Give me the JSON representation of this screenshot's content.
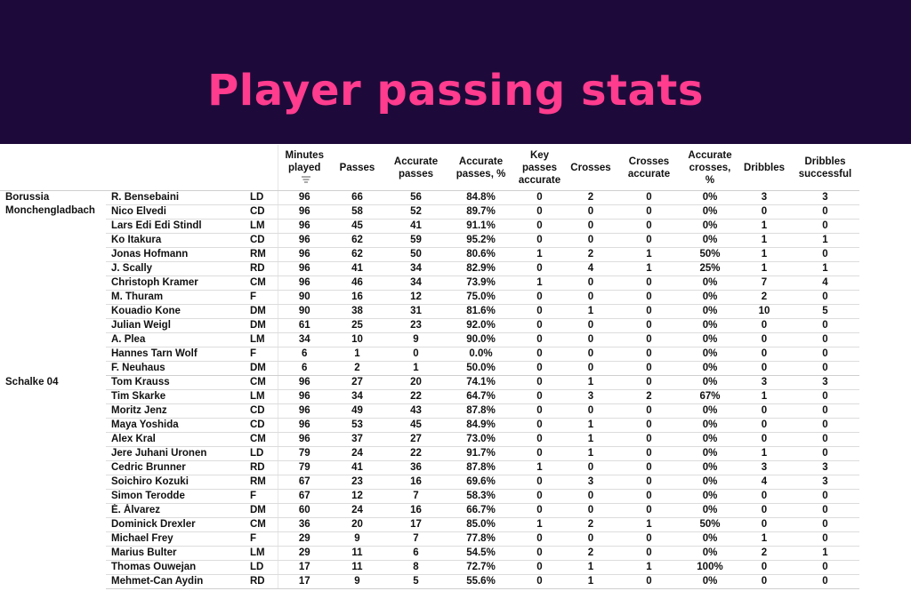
{
  "title": "Player passing stats",
  "colors": {
    "banner": "#1d0a3a",
    "title": "#ff3c8e"
  },
  "chart_data": {
    "type": "table",
    "columns": [
      "Minutes played",
      "Passes",
      "Accurate passes",
      "Accurate passes, %",
      "Key passes accurate",
      "Crosses",
      "Crosses accurate",
      "Accurate crosses, %",
      "Dribbles",
      "Dribbles successful"
    ],
    "column_lines": [
      [
        "Minutes",
        "played"
      ],
      [
        "Passes"
      ],
      [
        "Accurate",
        "passes"
      ],
      [
        "Accurate",
        "passes, %"
      ],
      [
        "Key",
        "passes",
        "accurate"
      ],
      [
        "Crosses"
      ],
      [
        "Crosses",
        "accurate"
      ],
      [
        "Accurate",
        "crosses, %"
      ],
      [
        "Dribbles"
      ],
      [
        "Dribbles",
        "successful"
      ]
    ],
    "sorted_column_icon": "sort-descending-icon",
    "teams": [
      {
        "name": "Borussia Monchengladbach",
        "players": [
          {
            "name": "R. Bensebaini",
            "pos": "LD",
            "stats": [
              "96",
              "66",
              "56",
              "84.8%",
              "0",
              "2",
              "0",
              "0%",
              "3",
              "3"
            ]
          },
          {
            "name": "Nico Elvedi",
            "pos": "CD",
            "stats": [
              "96",
              "58",
              "52",
              "89.7%",
              "0",
              "0",
              "0",
              "0%",
              "0",
              "0"
            ]
          },
          {
            "name": "Lars Edi Edi Stindl",
            "pos": "LM",
            "stats": [
              "96",
              "45",
              "41",
              "91.1%",
              "0",
              "0",
              "0",
              "0%",
              "1",
              "0"
            ]
          },
          {
            "name": "Ko Itakura",
            "pos": "CD",
            "stats": [
              "96",
              "62",
              "59",
              "95.2%",
              "0",
              "0",
              "0",
              "0%",
              "1",
              "1"
            ]
          },
          {
            "name": "Jonas Hofmann",
            "pos": "RM",
            "stats": [
              "96",
              "62",
              "50",
              "80.6%",
              "1",
              "2",
              "1",
              "50%",
              "1",
              "0"
            ]
          },
          {
            "name": "J. Scally",
            "pos": "RD",
            "stats": [
              "96",
              "41",
              "34",
              "82.9%",
              "0",
              "4",
              "1",
              "25%",
              "1",
              "1"
            ]
          },
          {
            "name": "Christoph Kramer",
            "pos": "CM",
            "stats": [
              "96",
              "46",
              "34",
              "73.9%",
              "1",
              "0",
              "0",
              "0%",
              "7",
              "4"
            ]
          },
          {
            "name": "M. Thuram",
            "pos": "F",
            "stats": [
              "90",
              "16",
              "12",
              "75.0%",
              "0",
              "0",
              "0",
              "0%",
              "2",
              "0"
            ]
          },
          {
            "name": "Kouadio Kone",
            "pos": "DM",
            "stats": [
              "90",
              "38",
              "31",
              "81.6%",
              "0",
              "1",
              "0",
              "0%",
              "10",
              "5"
            ]
          },
          {
            "name": "Julian Weigl",
            "pos": "DM",
            "stats": [
              "61",
              "25",
              "23",
              "92.0%",
              "0",
              "0",
              "0",
              "0%",
              "0",
              "0"
            ]
          },
          {
            "name": "A. Plea",
            "pos": "LM",
            "stats": [
              "34",
              "10",
              "9",
              "90.0%",
              "0",
              "0",
              "0",
              "0%",
              "0",
              "0"
            ]
          },
          {
            "name": "Hannes Tarn Wolf",
            "pos": "F",
            "stats": [
              "6",
              "1",
              "0",
              "0.0%",
              "0",
              "0",
              "0",
              "0%",
              "0",
              "0"
            ]
          },
          {
            "name": "F. Neuhaus",
            "pos": "DM",
            "stats": [
              "6",
              "2",
              "1",
              "50.0%",
              "0",
              "0",
              "0",
              "0%",
              "0",
              "0"
            ]
          }
        ]
      },
      {
        "name": "Schalke 04",
        "players": [
          {
            "name": "Tom Krauss",
            "pos": "CM",
            "stats": [
              "96",
              "27",
              "20",
              "74.1%",
              "0",
              "1",
              "0",
              "0%",
              "3",
              "3"
            ]
          },
          {
            "name": "Tim Skarke",
            "pos": "LM",
            "stats": [
              "96",
              "34",
              "22",
              "64.7%",
              "0",
              "3",
              "2",
              "67%",
              "1",
              "0"
            ]
          },
          {
            "name": "Moritz Jenz",
            "pos": "CD",
            "stats": [
              "96",
              "49",
              "43",
              "87.8%",
              "0",
              "0",
              "0",
              "0%",
              "0",
              "0"
            ]
          },
          {
            "name": "Maya Yoshida",
            "pos": "CD",
            "stats": [
              "96",
              "53",
              "45",
              "84.9%",
              "0",
              "1",
              "0",
              "0%",
              "0",
              "0"
            ]
          },
          {
            "name": "Alex Kral",
            "pos": "CM",
            "stats": [
              "96",
              "37",
              "27",
              "73.0%",
              "0",
              "1",
              "0",
              "0%",
              "0",
              "0"
            ]
          },
          {
            "name": "Jere Juhani Uronen",
            "pos": "LD",
            "stats": [
              "79",
              "24",
              "22",
              "91.7%",
              "0",
              "1",
              "0",
              "0%",
              "1",
              "0"
            ]
          },
          {
            "name": "Cedric Brunner",
            "pos": "RD",
            "stats": [
              "79",
              "41",
              "36",
              "87.8%",
              "1",
              "0",
              "0",
              "0%",
              "3",
              "3"
            ]
          },
          {
            "name": "Soichiro Kozuki",
            "pos": "RM",
            "stats": [
              "67",
              "23",
              "16",
              "69.6%",
              "0",
              "3",
              "0",
              "0%",
              "4",
              "3"
            ]
          },
          {
            "name": "Simon Terodde",
            "pos": "F",
            "stats": [
              "67",
              "12",
              "7",
              "58.3%",
              "0",
              "0",
              "0",
              "0%",
              "0",
              "0"
            ]
          },
          {
            "name": "É. Álvarez",
            "pos": "DM",
            "stats": [
              "60",
              "24",
              "16",
              "66.7%",
              "0",
              "0",
              "0",
              "0%",
              "0",
              "0"
            ]
          },
          {
            "name": "Dominick Drexler",
            "pos": "CM",
            "stats": [
              "36",
              "20",
              "17",
              "85.0%",
              "1",
              "2",
              "1",
              "50%",
              "0",
              "0"
            ]
          },
          {
            "name": "Michael Frey",
            "pos": "F",
            "stats": [
              "29",
              "9",
              "7",
              "77.8%",
              "0",
              "0",
              "0",
              "0%",
              "1",
              "0"
            ]
          },
          {
            "name": "Marius Bulter",
            "pos": "LM",
            "stats": [
              "29",
              "11",
              "6",
              "54.5%",
              "0",
              "2",
              "0",
              "0%",
              "2",
              "1"
            ]
          },
          {
            "name": "Thomas Ouwejan",
            "pos": "LD",
            "stats": [
              "17",
              "11",
              "8",
              "72.7%",
              "0",
              "1",
              "1",
              "100%",
              "0",
              "0"
            ]
          },
          {
            "name": "Mehmet-Can Aydin",
            "pos": "RD",
            "stats": [
              "17",
              "9",
              "5",
              "55.6%",
              "0",
              "1",
              "0",
              "0%",
              "0",
              "0"
            ]
          }
        ]
      }
    ]
  }
}
